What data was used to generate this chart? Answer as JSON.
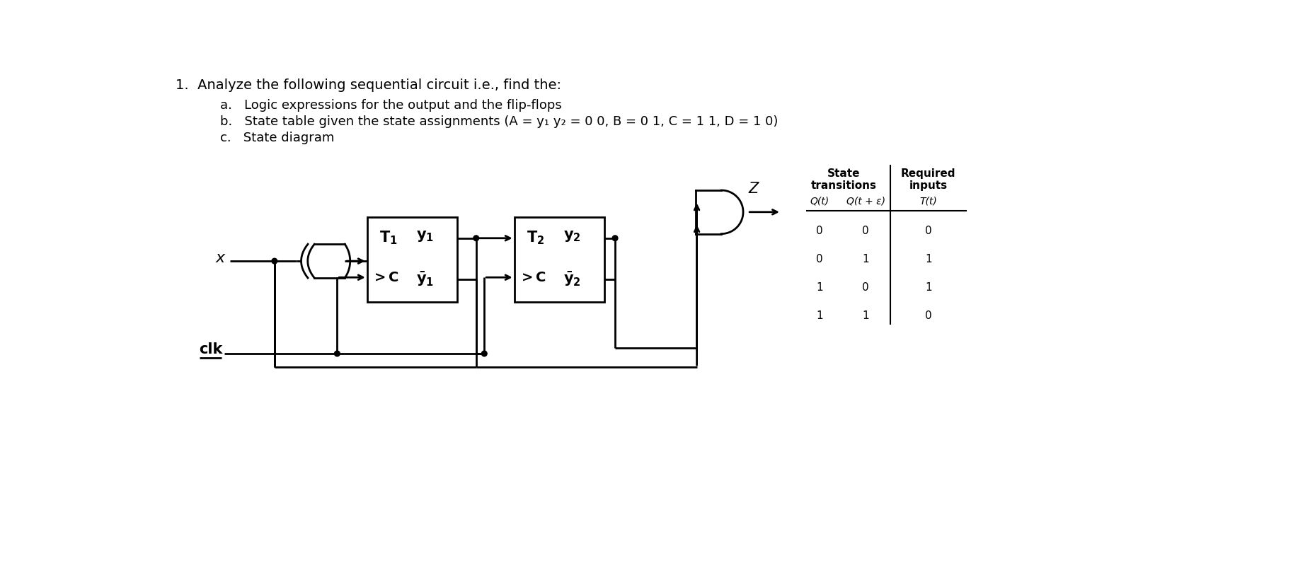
{
  "bg_color": "#ffffff",
  "title_text": "1.  Analyze the following sequential circuit i.e., find the:",
  "item_a": "a.   Logic expressions for the output and the flip-flops",
  "item_b": "b.   State table given the state assignments (A = y₁ y₂ = 0 0, B = 0 1, C = 1 1, D = 1 0)",
  "item_c": "c.   State diagram",
  "table_header1_line1": "State",
  "table_header1_line2": "transitions",
  "table_header2_line1": "Required",
  "table_header2_line2": "inputs",
  "col1": "Q(t)",
  "col2": "Q(t + ε)",
  "col3": "T(t)",
  "table_data": [
    [
      0,
      0,
      0
    ],
    [
      0,
      1,
      1
    ],
    [
      1,
      0,
      1
    ],
    [
      1,
      1,
      0
    ]
  ],
  "lw": 2.0
}
